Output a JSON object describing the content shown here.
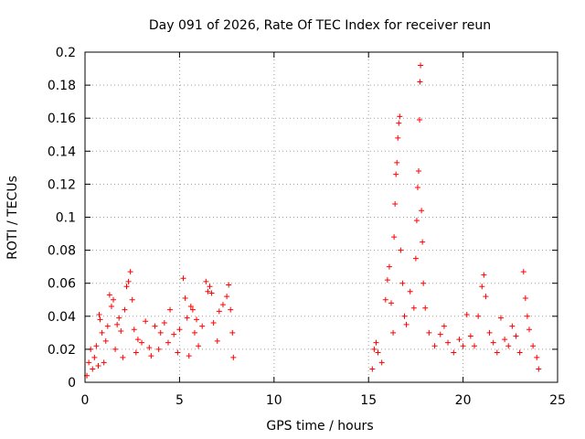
{
  "chart_data": {
    "type": "scatter",
    "title": "Day 091 of 2026, Rate Of TEC Index for receiver reun",
    "xlabel": "GPS time / hours",
    "ylabel": "ROTI / TECUs",
    "xlim": [
      0,
      25
    ],
    "ylim": [
      0,
      0.2
    ],
    "xticks": [
      0,
      5,
      10,
      15,
      20,
      25
    ],
    "yticks": [
      0,
      0.02,
      0.04,
      0.06,
      0.08,
      0.1,
      0.12,
      0.14,
      0.16,
      0.18,
      0.2
    ],
    "xtick_labels": [
      "0",
      "5",
      "10",
      "15",
      "20",
      "25"
    ],
    "ytick_labels": [
      "0",
      "0.02",
      "0.04",
      "0.06",
      "0.08",
      "0.1",
      "0.12",
      "0.14",
      "0.16",
      "0.18",
      "0.2"
    ],
    "grid": true,
    "marker": "+",
    "series_color": "#ff0000",
    "series": [
      {
        "values": [
          [
            0.1,
            0.004
          ],
          [
            0.2,
            0.012
          ],
          [
            0.3,
            0.02
          ],
          [
            0.4,
            0.008
          ],
          [
            0.5,
            0.015
          ],
          [
            0.6,
            0.022
          ],
          [
            0.7,
            0.01
          ],
          [
            0.75,
            0.041
          ],
          [
            0.8,
            0.038
          ],
          [
            0.9,
            0.03
          ],
          [
            1.0,
            0.012
          ],
          [
            1.1,
            0.025
          ],
          [
            1.2,
            0.034
          ],
          [
            1.3,
            0.053
          ],
          [
            1.4,
            0.046
          ],
          [
            1.5,
            0.05
          ],
          [
            1.6,
            0.02
          ],
          [
            1.7,
            0.035
          ],
          [
            1.8,
            0.039
          ],
          [
            1.9,
            0.031
          ],
          [
            2.0,
            0.015
          ],
          [
            2.1,
            0.044
          ],
          [
            2.2,
            0.058
          ],
          [
            2.3,
            0.061
          ],
          [
            2.4,
            0.067
          ],
          [
            2.5,
            0.05
          ],
          [
            2.6,
            0.032
          ],
          [
            2.7,
            0.018
          ],
          [
            2.8,
            0.026
          ],
          [
            3.0,
            0.024
          ],
          [
            3.2,
            0.037
          ],
          [
            3.4,
            0.021
          ],
          [
            3.5,
            0.016
          ],
          [
            3.7,
            0.034
          ],
          [
            3.9,
            0.02
          ],
          [
            4.0,
            0.03
          ],
          [
            4.2,
            0.036
          ],
          [
            4.4,
            0.024
          ],
          [
            4.5,
            0.044
          ],
          [
            4.7,
            0.029
          ],
          [
            4.9,
            0.018
          ],
          [
            5.0,
            0.032
          ],
          [
            5.2,
            0.063
          ],
          [
            5.3,
            0.051
          ],
          [
            5.4,
            0.039
          ],
          [
            5.5,
            0.016
          ],
          [
            5.6,
            0.046
          ],
          [
            5.7,
            0.044
          ],
          [
            5.8,
            0.03
          ],
          [
            5.9,
            0.038
          ],
          [
            6.0,
            0.022
          ],
          [
            6.2,
            0.034
          ],
          [
            6.4,
            0.061
          ],
          [
            6.5,
            0.055
          ],
          [
            6.6,
            0.058
          ],
          [
            6.7,
            0.054
          ],
          [
            6.8,
            0.036
          ],
          [
            7.0,
            0.025
          ],
          [
            7.1,
            0.043
          ],
          [
            7.3,
            0.047
          ],
          [
            7.5,
            0.052
          ],
          [
            7.6,
            0.059
          ],
          [
            7.7,
            0.044
          ],
          [
            7.8,
            0.03
          ],
          [
            7.85,
            0.015
          ],
          [
            15.2,
            0.008
          ],
          [
            15.3,
            0.02
          ],
          [
            15.4,
            0.024
          ],
          [
            15.5,
            0.018
          ],
          [
            15.7,
            0.012
          ],
          [
            15.9,
            0.05
          ],
          [
            16.0,
            0.062
          ],
          [
            16.1,
            0.07
          ],
          [
            16.2,
            0.048
          ],
          [
            16.3,
            0.03
          ],
          [
            16.35,
            0.088
          ],
          [
            16.4,
            0.108
          ],
          [
            16.45,
            0.126
          ],
          [
            16.5,
            0.133
          ],
          [
            16.55,
            0.148
          ],
          [
            16.6,
            0.157
          ],
          [
            16.65,
            0.161
          ],
          [
            16.7,
            0.08
          ],
          [
            16.8,
            0.06
          ],
          [
            16.9,
            0.04
          ],
          [
            17.0,
            0.035
          ],
          [
            17.2,
            0.055
          ],
          [
            17.4,
            0.045
          ],
          [
            17.5,
            0.075
          ],
          [
            17.55,
            0.098
          ],
          [
            17.6,
            0.118
          ],
          [
            17.65,
            0.128
          ],
          [
            17.7,
            0.159
          ],
          [
            17.72,
            0.182
          ],
          [
            17.75,
            0.192
          ],
          [
            17.8,
            0.104
          ],
          [
            17.85,
            0.085
          ],
          [
            17.9,
            0.06
          ],
          [
            18.0,
            0.045
          ],
          [
            18.2,
            0.03
          ],
          [
            18.5,
            0.022
          ],
          [
            18.8,
            0.029
          ],
          [
            19.0,
            0.034
          ],
          [
            19.2,
            0.024
          ],
          [
            19.5,
            0.018
          ],
          [
            19.8,
            0.026
          ],
          [
            20.0,
            0.022
          ],
          [
            20.2,
            0.041
          ],
          [
            20.4,
            0.028
          ],
          [
            20.6,
            0.022
          ],
          [
            20.8,
            0.04
          ],
          [
            21.0,
            0.058
          ],
          [
            21.1,
            0.065
          ],
          [
            21.2,
            0.052
          ],
          [
            21.4,
            0.03
          ],
          [
            21.6,
            0.024
          ],
          [
            21.8,
            0.018
          ],
          [
            22.0,
            0.039
          ],
          [
            22.2,
            0.026
          ],
          [
            22.4,
            0.022
          ],
          [
            22.6,
            0.034
          ],
          [
            22.8,
            0.028
          ],
          [
            23.0,
            0.018
          ],
          [
            23.2,
            0.067
          ],
          [
            23.3,
            0.051
          ],
          [
            23.4,
            0.04
          ],
          [
            23.5,
            0.032
          ],
          [
            23.7,
            0.022
          ],
          [
            23.9,
            0.015
          ],
          [
            24.0,
            0.008
          ]
        ]
      }
    ]
  }
}
